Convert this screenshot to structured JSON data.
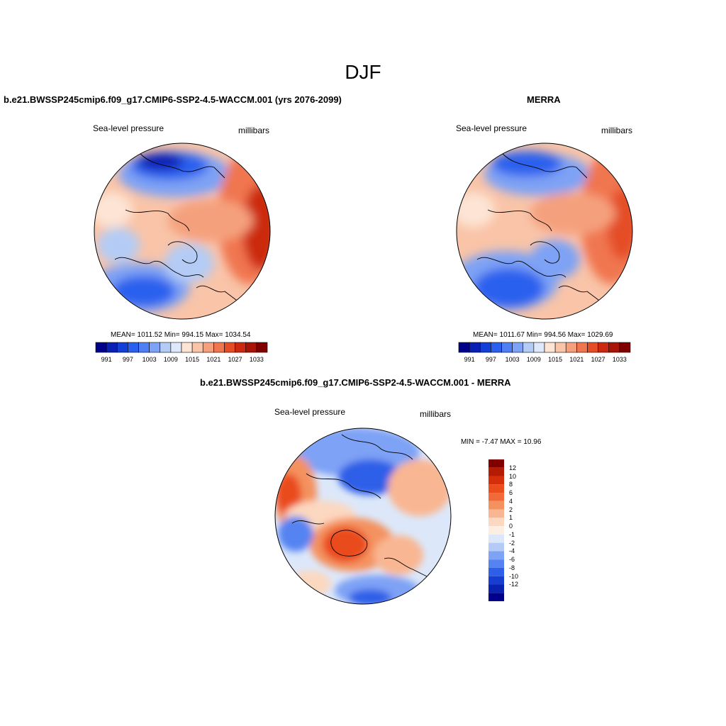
{
  "figure": {
    "season": "DJF"
  },
  "panel_model": {
    "title": "b.e21.BWSSP245cmip6.f09_g17.CMIP6-SSP2-4.5-WACCM.001 (yrs 2076-2099)",
    "variable": "Sea-level pressure",
    "units": "millibars",
    "stats": "MEAN= 1011.52  Min= 994.15  Max= 1034.54"
  },
  "panel_obs": {
    "title": "MERRA",
    "variable": "Sea-level pressure",
    "units": "millibars",
    "stats": "MEAN= 1011.67  Min= 994.56  Max= 1029.69"
  },
  "panel_diff": {
    "title": "b.e21.BWSSP245cmip6.f09_g17.CMIP6-SSP2-4.5-WACCM.001 - MERRA",
    "variable": "Sea-level pressure",
    "units": "millibars",
    "stats": "MIN =  -7.47 MAX =  10.96"
  },
  "colorbar_abs": {
    "colors": [
      "#00008b",
      "#0a1fb4",
      "#1040d8",
      "#2a60ee",
      "#4f7ff5",
      "#7ea2f5",
      "#b4ccf5",
      "#dde9fb",
      "#fde4d4",
      "#f9c4a8",
      "#f5a07d",
      "#f0764f",
      "#e44d26",
      "#cc2a10",
      "#a81405",
      "#800000"
    ],
    "tick_labels": [
      "991",
      "997",
      "1003",
      "1009",
      "1015",
      "1021",
      "1027",
      "1033"
    ]
  },
  "colorbar_diff": {
    "colors_top_to_bottom": [
      "#800000",
      "#b51a02",
      "#d42f0a",
      "#ea4c1c",
      "#f26a3a",
      "#f4925f",
      "#f9b692",
      "#fcd8c0",
      "#fdeee2",
      "#dce8fa",
      "#b4ccf5",
      "#7ea2f5",
      "#5583f2",
      "#2e5fe8",
      "#163fd2",
      "#0a22b0",
      "#00008b"
    ],
    "tick_labels": [
      "12",
      "10",
      "8",
      "6",
      "4",
      "2",
      "1",
      "0",
      "-1",
      "-2",
      "-4",
      "-6",
      "-8",
      "-10",
      "-12"
    ]
  }
}
